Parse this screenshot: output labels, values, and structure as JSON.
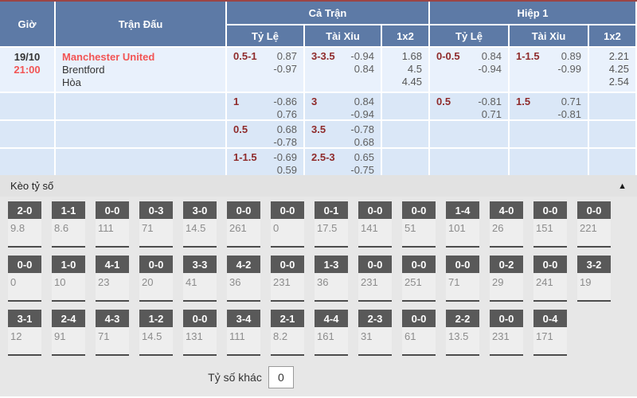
{
  "colors": {
    "header_blue": "#5d7aa6",
    "row_light": "#e9f1fc",
    "row_base": "#dae7f7",
    "accent_red": "#f25454",
    "handicap_maroon": "#8f2b2b",
    "tile_dark": "#595959",
    "section_gray": "#e7e7e7"
  },
  "odds_table": {
    "columns": {
      "time": "Giờ",
      "match": "Trận Đấu",
      "full": "Cả Trận",
      "half": "Hiệp 1",
      "handicap": "Tỷ Lệ",
      "over_under": "Tài Xỉu",
      "one_x_two": "1x2"
    },
    "match": {
      "date": "19/10",
      "time": "21:00",
      "home": "Manchester United",
      "away": "Brentford",
      "draw": "Hòa"
    },
    "rows": [
      {
        "full_hdp": {
          "line": "0.5-1",
          "a": "0.87",
          "b": "-0.97"
        },
        "full_ou": {
          "line": "3-3.5",
          "a": "-0.94",
          "b": "0.84"
        },
        "full_1x2": [
          "1.68",
          "4.5",
          "4.45"
        ],
        "half_hdp": {
          "line": "0-0.5",
          "a": "0.84",
          "b": "-0.94"
        },
        "half_ou": {
          "line": "1-1.5",
          "a": "0.89",
          "b": "-0.99"
        },
        "half_1x2": [
          "2.21",
          "4.25",
          "2.54"
        ]
      },
      {
        "full_hdp": {
          "line": "1",
          "a": "-0.86",
          "b": "0.76"
        },
        "full_ou": {
          "line": "3",
          "a": "0.84",
          "b": "-0.94"
        },
        "half_hdp": {
          "line": "0.5",
          "a": "-0.81",
          "b": "0.71"
        },
        "half_ou": {
          "line": "1.5",
          "a": "0.71",
          "b": "-0.81"
        }
      },
      {
        "full_hdp": {
          "line": "0.5",
          "a": "0.68",
          "b": "-0.78"
        },
        "full_ou": {
          "line": "3.5",
          "a": "-0.78",
          "b": "0.68"
        }
      },
      {
        "full_hdp": {
          "line": "1-1.5",
          "a": "-0.69",
          "b": "0.59"
        },
        "full_ou": {
          "line": "2.5-3",
          "a": "0.65",
          "b": "-0.75"
        }
      }
    ]
  },
  "score_section": {
    "title": "Kèo tỷ số",
    "collapse_icon": "▲",
    "rows": [
      [
        {
          "score": "2-0",
          "odds": "9.8"
        },
        {
          "score": "1-1",
          "odds": "8.6"
        },
        {
          "score": "0-0",
          "odds": "111"
        },
        {
          "score": "0-3",
          "odds": "71"
        },
        {
          "score": "3-0",
          "odds": "14.5"
        },
        {
          "score": "0-0",
          "odds": "261"
        },
        {
          "score": "0-0",
          "odds": "0"
        },
        {
          "score": "0-1",
          "odds": "17.5"
        },
        {
          "score": "0-0",
          "odds": "141"
        },
        {
          "score": "0-0",
          "odds": "51"
        },
        {
          "score": "1-4",
          "odds": "101"
        },
        {
          "score": "4-0",
          "odds": "26"
        },
        {
          "score": "0-0",
          "odds": "151"
        },
        {
          "score": "0-0",
          "odds": "221"
        }
      ],
      [
        {
          "score": "0-0",
          "odds": "0"
        },
        {
          "score": "1-0",
          "odds": "10"
        },
        {
          "score": "4-1",
          "odds": "23"
        },
        {
          "score": "0-0",
          "odds": "20"
        },
        {
          "score": "3-3",
          "odds": "41"
        },
        {
          "score": "4-2",
          "odds": "36"
        },
        {
          "score": "0-0",
          "odds": "231"
        },
        {
          "score": "1-3",
          "odds": "36"
        },
        {
          "score": "0-0",
          "odds": "231"
        },
        {
          "score": "0-0",
          "odds": "251"
        },
        {
          "score": "0-0",
          "odds": "71"
        },
        {
          "score": "0-2",
          "odds": "29"
        },
        {
          "score": "0-0",
          "odds": "241"
        },
        {
          "score": "3-2",
          "odds": "19"
        }
      ],
      [
        {
          "score": "3-1",
          "odds": "12"
        },
        {
          "score": "2-4",
          "odds": "91"
        },
        {
          "score": "4-3",
          "odds": "71"
        },
        {
          "score": "1-2",
          "odds": "14.5"
        },
        {
          "score": "0-0",
          "odds": "131"
        },
        {
          "score": "3-4",
          "odds": "111"
        },
        {
          "score": "2-1",
          "odds": "8.2"
        },
        {
          "score": "4-4",
          "odds": "161"
        },
        {
          "score": "2-3",
          "odds": "31"
        },
        {
          "score": "0-0",
          "odds": "61"
        },
        {
          "score": "2-2",
          "odds": "13.5"
        },
        {
          "score": "0-0",
          "odds": "231"
        },
        {
          "score": "0-4",
          "odds": "171"
        }
      ]
    ],
    "other": {
      "label": "Tỷ số khác",
      "value": "0"
    }
  }
}
